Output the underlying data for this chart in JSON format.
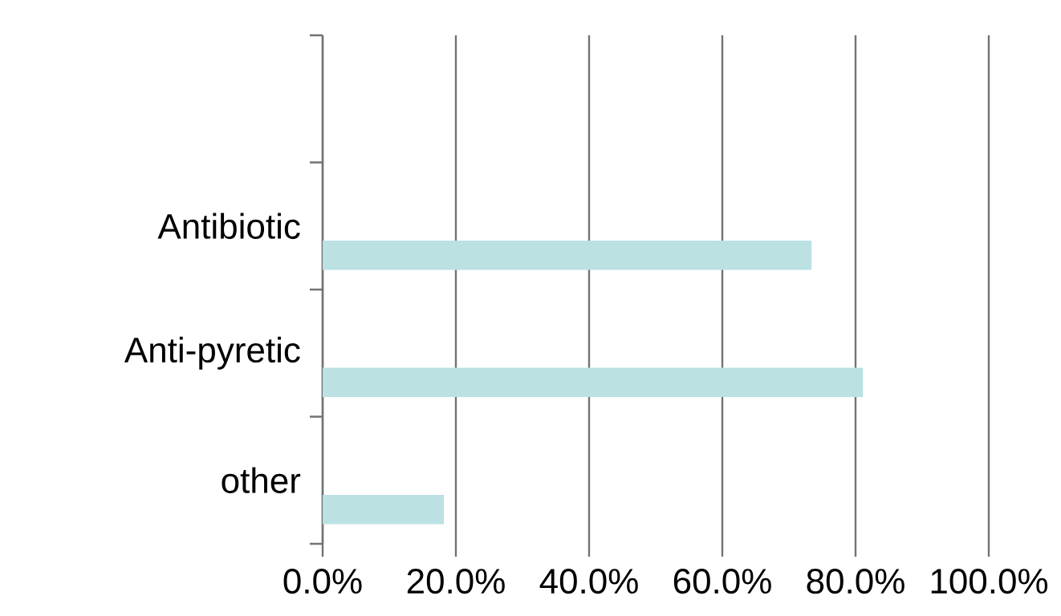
{
  "chart_data": {
    "type": "bar",
    "orientation": "horizontal",
    "categories": [
      null,
      "Antibiotic",
      "Anti-pyretic",
      "other"
    ],
    "values": [
      null,
      73.4,
      81.1,
      18.2
    ],
    "color": "#bbe1e3",
    "xlim": [
      0,
      100
    ],
    "xticks": [
      {
        "value": 0,
        "label": "0.0%"
      },
      {
        "value": 20,
        "label": "20.0%"
      },
      {
        "value": 40,
        "label": "40.0%"
      },
      {
        "value": 60,
        "label": "60.0%"
      },
      {
        "value": 80,
        "label": "80.0%"
      },
      {
        "value": 100,
        "label": "100.0%"
      }
    ],
    "grid": "x"
  }
}
